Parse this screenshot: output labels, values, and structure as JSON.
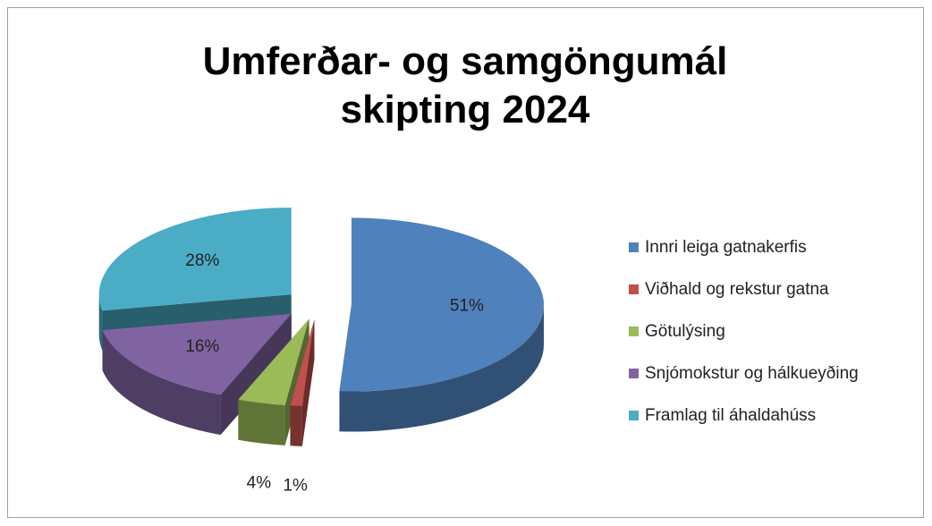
{
  "chart_data": {
    "type": "pie",
    "title": "Umferðar- og samgöngumál skipting 2024",
    "categories": [
      "Innri leiga gatnakerfis",
      "Viðhald og rekstur gatna",
      "Götulýsing",
      "Snjómokstur og hálkueyðing",
      "Framlag til áhaldahúss"
    ],
    "values": [
      51,
      1,
      4,
      16,
      28
    ],
    "value_labels": [
      "51%",
      "1%",
      "4%",
      "16%",
      "28%"
    ],
    "colors": [
      "#4f81bd",
      "#c0504d",
      "#9bbb59",
      "#8064a2",
      "#4bacc6"
    ],
    "legend": "right"
  }
}
